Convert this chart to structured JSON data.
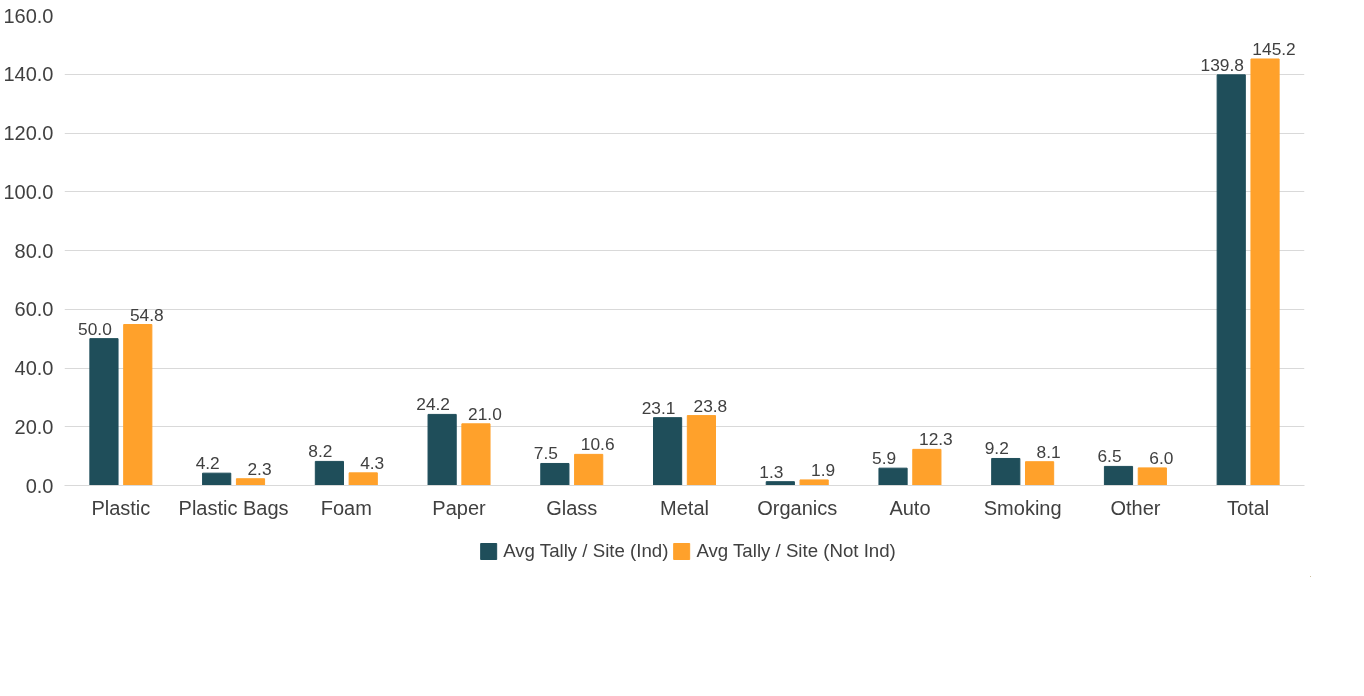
{
  "chart_data": {
    "type": "bar",
    "categories": [
      "Plastic",
      "Plastic Bags",
      "Foam",
      "Paper",
      "Glass",
      "Metal",
      "Organics",
      "Auto",
      "Smoking",
      "Other",
      "Total"
    ],
    "series": [
      {
        "name": "Avg Tally / Site (Ind)",
        "color": "#1f4e5a",
        "values": [
          50.0,
          4.2,
          8.2,
          24.2,
          7.5,
          23.1,
          1.3,
          5.9,
          9.2,
          6.5,
          139.8
        ],
        "value_labels": [
          "50.0",
          "4.2",
          "8.2",
          "24.2",
          "7.5",
          "23.1",
          "1.3",
          "5.9",
          "9.2",
          "6.5",
          "139.8"
        ]
      },
      {
        "name": "Avg Tally / Site (Not Ind)",
        "color": "#ffa12b",
        "values": [
          54.8,
          2.3,
          4.3,
          21.0,
          10.6,
          23.8,
          1.9,
          12.3,
          8.1,
          6.0,
          145.2
        ],
        "value_labels": [
          "54.8",
          "2.3",
          "4.3",
          "21.0",
          "10.6",
          "23.8",
          "1.9",
          "12.3",
          "8.1",
          "6.0",
          "145.2"
        ]
      }
    ],
    "ylim": [
      0,
      160
    ],
    "yticks": [
      {
        "value": 0,
        "label": "0.0"
      },
      {
        "value": 20,
        "label": "20.0"
      },
      {
        "value": 40,
        "label": "40.0"
      },
      {
        "value": 60,
        "label": "60.0"
      },
      {
        "value": 80,
        "label": "80.0"
      },
      {
        "value": 100,
        "label": "100.0"
      },
      {
        "value": 120,
        "label": "120.0"
      },
      {
        "value": 140,
        "label": "140.0"
      },
      {
        "value": 160,
        "label": "160.0"
      }
    ],
    "grid": "y",
    "legend": "bottom"
  }
}
